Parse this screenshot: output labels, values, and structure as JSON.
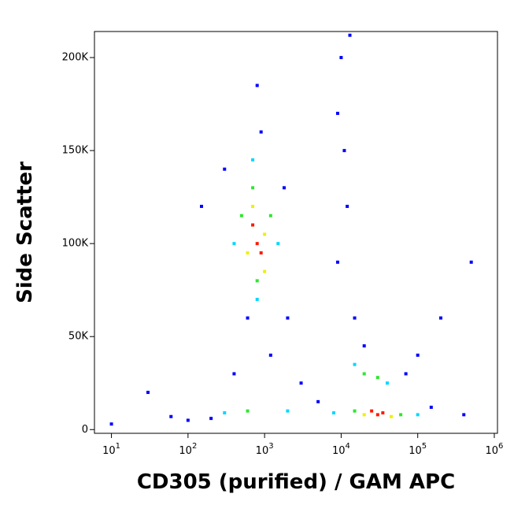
{
  "chart_data": {
    "type": "scatter",
    "xlabel": "CD305 (purified) / GAM APC",
    "ylabel": "Side Scatter",
    "xscale": "log",
    "xlim": [
      6,
      1100000
    ],
    "ylim": [
      -2000,
      214000
    ],
    "xticks": [
      {
        "value": 10,
        "label": "10",
        "power": "1"
      },
      {
        "value": 100,
        "label": "10",
        "power": "2"
      },
      {
        "value": 1000,
        "label": "10",
        "power": "3"
      },
      {
        "value": 10000,
        "label": "10",
        "power": "4"
      },
      {
        "value": 100000,
        "label": "10",
        "power": "5"
      },
      {
        "value": 1000000,
        "label": "10",
        "power": "6"
      }
    ],
    "yticks": [
      0,
      {
        "value": 50000,
        "label": "50K"
      },
      {
        "value": 100000,
        "label": "100K"
      },
      {
        "value": 150000,
        "label": "150K"
      },
      {
        "value": 200000,
        "label": "200K"
      }
    ],
    "density_levels": [
      {
        "color": "#0000ff",
        "x": [
          200,
          100,
          60,
          300,
          1800,
          900,
          800,
          600,
          10000,
          9000,
          11000,
          12000,
          9000,
          15000,
          20000,
          70000,
          150000,
          400000,
          400,
          1200,
          3000,
          150,
          200000,
          500000,
          30,
          10,
          13000,
          2000,
          5000,
          100000
        ],
        "y": [
          6000,
          5000,
          7000,
          140000,
          130000,
          160000,
          185000,
          60000,
          200000,
          170000,
          150000,
          120000,
          90000,
          60000,
          45000,
          30000,
          12000,
          8000,
          30000,
          40000,
          25000,
          120000,
          60000,
          90000,
          20000,
          3000,
          212000,
          60000,
          15000,
          40000
        ]
      },
      {
        "color": "#00d8ff",
        "x": [
          400,
          1500,
          700,
          800,
          300,
          2000,
          8000,
          15000,
          40000,
          100000
        ],
        "y": [
          100000,
          100000,
          145000,
          70000,
          9000,
          10000,
          9000,
          35000,
          25000,
          8000
        ]
      },
      {
        "color": "#2ee62e",
        "x": [
          500,
          1200,
          700,
          800,
          15000,
          20000,
          30000,
          600,
          60000
        ],
        "y": [
          115000,
          115000,
          130000,
          80000,
          10000,
          30000,
          28000,
          10000,
          8000
        ]
      },
      {
        "color": "#f0f000",
        "x": [
          700,
          1000,
          600,
          20000,
          45000,
          1000
        ],
        "y": [
          120000,
          105000,
          95000,
          8000,
          7000,
          85000
        ]
      },
      {
        "color": "#ff1a00",
        "x": [
          800,
          700,
          900,
          30000,
          25000,
          35000
        ],
        "y": [
          100000,
          110000,
          95000,
          8000,
          10000,
          9000
        ]
      }
    ]
  }
}
